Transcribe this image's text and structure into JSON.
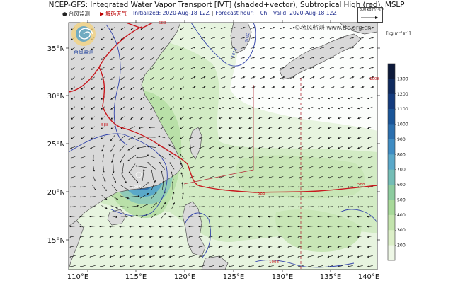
{
  "header": {
    "title": "NCEP-GFS: Integrated Water Vapor Transport [IVT] (shaded+vector), Subtropical High (red), MSLP",
    "initialized": "Initialized: 2020-Aug-18 12Z",
    "forecast_hour": "Forecast hour: +0h",
    "valid": "Valid: 2020-Aug-18 12Z",
    "brand1": "台风监测",
    "brand2": "解码天气"
  },
  "logo": {
    "text": "台风监测"
  },
  "watermark": "©台风监测 www.tfc.org.cn",
  "reference_vector": {
    "label": "800 kg m⁻¹s⁻¹"
  },
  "colorbar": {
    "unit": "[kg m⁻¹s⁻¹]",
    "ticks": [
      "1300",
      "1200",
      "1100",
      "1000",
      "900",
      "800",
      "700",
      "600",
      "500",
      "400",
      "300",
      "200"
    ],
    "colors": [
      "#0d1a3a",
      "#0f2a5e",
      "#143b7d",
      "#1a5598",
      "#2b6fae",
      "#3f8cc3",
      "#5aa8c9",
      "#74bdb6",
      "#8dcc9f",
      "#a8d99a",
      "#c3e4ad",
      "#dcefc8",
      "#eef7e6"
    ]
  },
  "axes": {
    "lon_labels": [
      "110°E",
      "115°E",
      "120°E",
      "125°E",
      "130°E",
      "135°E",
      "140°E"
    ],
    "lat_labels": [
      "35°N",
      "30°N",
      "25°N",
      "20°N",
      "15°N"
    ]
  },
  "contour_labels": {
    "subtropical_high": [
      "588",
      "588",
      "588",
      "588"
    ],
    "isobars": [
      "1008",
      "1008",
      "1008",
      "1012",
      "1012"
    ]
  }
}
